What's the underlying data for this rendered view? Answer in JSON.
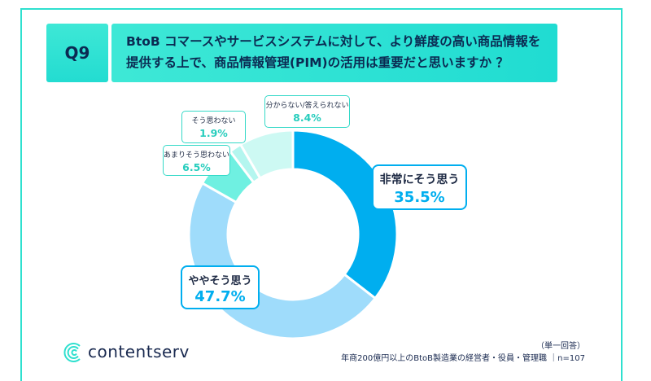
{
  "question": {
    "number": "Q9",
    "line1": "BtoB コマースやサービスシステムに対して、より鮮度の高い商品情報を",
    "line2": "提供する上で、商品情報管理(PIM)の活用は重要だと思いますか ？"
  },
  "chart_data": {
    "type": "pie",
    "categories": [
      "非常にそう思う",
      "ややそう思う",
      "あまりそう思わない",
      "そう思わない",
      "分からない/答えられない"
    ],
    "values": [
      35.5,
      47.7,
      6.5,
      1.9,
      8.4
    ],
    "labels": [
      "35.5%",
      "47.7%",
      "6.5%",
      "1.9%",
      "8.4%"
    ],
    "colors": [
      "#00aeef",
      "#9fdcfb",
      "#6ff0e1",
      "#b4f6ef",
      "#cdf9f3"
    ],
    "style": "donut"
  },
  "footer": {
    "brand": "contentserv",
    "note1": "（単一回答）",
    "note2": "年商200億円以上のBtoB製造業の経営者・役員・管理職 ｜n=107"
  },
  "colors": {
    "accent": "#2fe0cf",
    "title_text": "#0b2a52",
    "highlight": "#00aeef"
  }
}
